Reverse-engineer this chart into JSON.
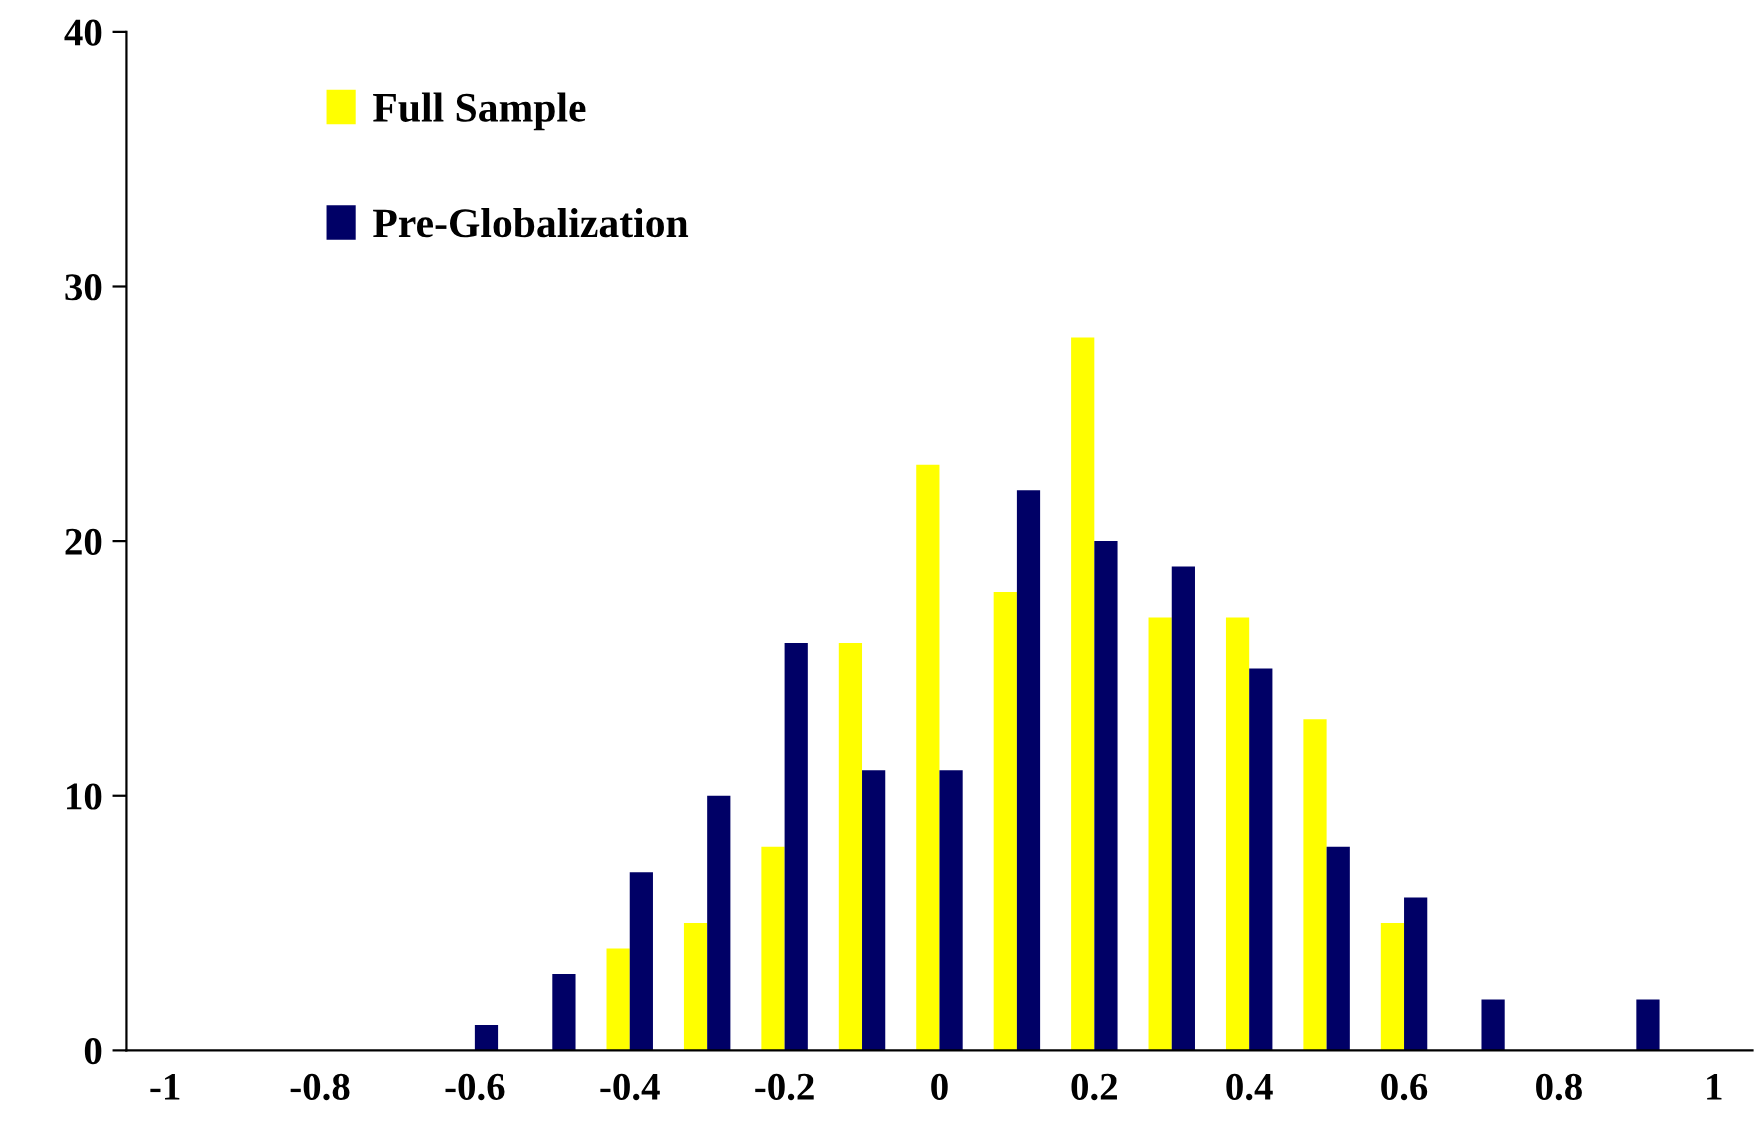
{
  "chart_data": {
    "type": "bar",
    "categories": [
      "-1",
      null,
      "-0.8",
      null,
      "-0.6",
      null,
      "-0.4",
      null,
      "-0.2",
      null,
      "0",
      null,
      "0.2",
      null,
      "0.4",
      null,
      "0.6",
      null,
      "0.8",
      null,
      "1"
    ],
    "series": [
      {
        "name": "Full Sample",
        "color": "#ffff00",
        "values": [
          0,
          0,
          0,
          0,
          0,
          0,
          4,
          5,
          8,
          16,
          23,
          18,
          28,
          17,
          17,
          13,
          5,
          0,
          0,
          0,
          0
        ]
      },
      {
        "name": "Pre-Globalization",
        "color": "#000066",
        "values": [
          0,
          0,
          0,
          0,
          1,
          3,
          7,
          10,
          16,
          11,
          11,
          22,
          20,
          19,
          15,
          8,
          6,
          2,
          0,
          2,
          0
        ]
      }
    ],
    "ylim": [
      0,
      40
    ],
    "yticks": [
      0,
      10,
      20,
      30,
      40
    ],
    "grid": false,
    "legend": "top left"
  }
}
